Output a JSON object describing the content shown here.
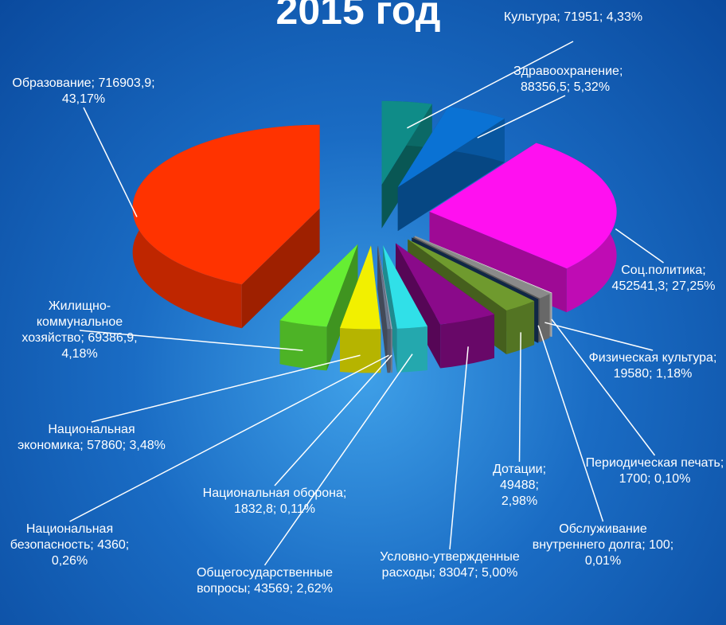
{
  "chart_data": {
    "type": "pie3d",
    "title": "2015 год",
    "separator": "; ",
    "categories": [
      "Культура",
      "Здравоохранение",
      "Соц.политика",
      "Периодическая печать",
      "Физическая культура",
      "Обслуживание внутреннего долга",
      "Дотации",
      "Условно-утвержденные расходы",
      "Общегосударственные вопросы",
      "Национальная оборона",
      "Национальная безопасность",
      "Национальная экономика",
      "Жилищно-коммунальное хозяйство",
      "Образование"
    ],
    "values": [
      71951,
      88356.5,
      452541.3,
      1700,
      19580,
      100,
      49488,
      83047,
      43569,
      1832.8,
      4360,
      57860,
      69386.9,
      716903.9
    ],
    "value_labels": [
      "71951",
      "88356,5",
      "452541,3",
      "1700",
      "19580",
      "100",
      "49488",
      "83047",
      "43569",
      "1832,8",
      "4360",
      "57860",
      "69386,9",
      "716903,9"
    ],
    "percents": [
      4.33,
      5.32,
      27.25,
      0.1,
      1.18,
      0.01,
      2.98,
      5.0,
      2.62,
      0.11,
      0.26,
      3.48,
      4.18,
      43.17
    ],
    "percent_labels": [
      "4,33%",
      "5,32%",
      "27,25%",
      "0,10%",
      "1,18%",
      "0,01%",
      "2,98%",
      "5,00%",
      "2,62%",
      "0,11%",
      "0,26%",
      "3,48%",
      "4,18%",
      "43,17%"
    ],
    "colors": [
      "#0f8c88",
      "#0a72d4",
      "#ff10f0",
      "#eeeeee",
      "#8a8a8a",
      "#1a3f6f",
      "#6f9a2e",
      "#8a0a8a",
      "#30e0e8",
      "#9aa4b8",
      "#6a7890",
      "#f2f000",
      "#66ee33",
      "#ff3300"
    ]
  }
}
